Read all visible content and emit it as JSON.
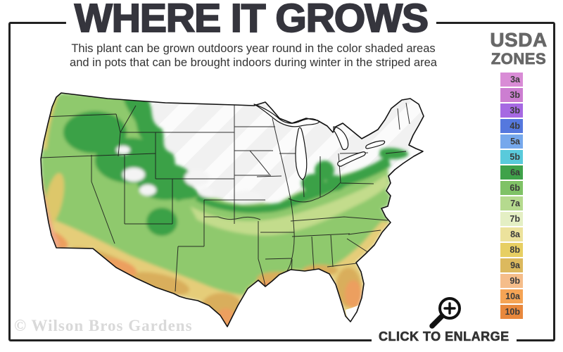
{
  "header": {
    "title": "WHERE IT GROWS",
    "subtitle_line1": "This plant can be grown outdoors year round in the color shaded areas",
    "subtitle_line2": "and in pots that can be brought indoors during winter in the striped area"
  },
  "legend": {
    "title_line1": "USDA",
    "title_line2": "ZONES",
    "zones": [
      {
        "label": "3a",
        "color": "#d98cd6"
      },
      {
        "label": "3b",
        "color": "#cc7ed1"
      },
      {
        "label": "3b",
        "color": "#a669e2"
      },
      {
        "label": "4b",
        "color": "#5578de"
      },
      {
        "label": "5a",
        "color": "#76a8ec"
      },
      {
        "label": "5b",
        "color": "#59cadb"
      },
      {
        "label": "6a",
        "color": "#3fa24a"
      },
      {
        "label": "6b",
        "color": "#7fc266"
      },
      {
        "label": "7a",
        "color": "#b5da8e"
      },
      {
        "label": "7b",
        "color": "#e4efc4"
      },
      {
        "label": "8a",
        "color": "#ece29c"
      },
      {
        "label": "8b",
        "color": "#e7cf63"
      },
      {
        "label": "9a",
        "color": "#dcb95e"
      },
      {
        "label": "9b",
        "color": "#f5bd8a"
      },
      {
        "label": "10a",
        "color": "#f5a455"
      },
      {
        "label": "10b",
        "color": "#e8883d"
      }
    ]
  },
  "map": {
    "description": "Continental United States USDA hardiness zone shading; striped white area = indoor-pot zone",
    "colors": {
      "base": "#f1f1f1",
      "stripe": "#fbfbfb",
      "green": "#3aa147",
      "mid_green": "#8fc96d",
      "light_band": "#c3dc8c",
      "yellow": "#e5cd79",
      "mustard": "#d9ae5c",
      "orange": "#ec9f5e",
      "salmon": "#efa98a",
      "coast_yellow": "#ddc76b",
      "white_patch": "#f4f4f4"
    }
  },
  "footer": {
    "watermark": "© Wilson Bros Gardens",
    "enlarge_label": "CLICK TO ENLARGE"
  }
}
